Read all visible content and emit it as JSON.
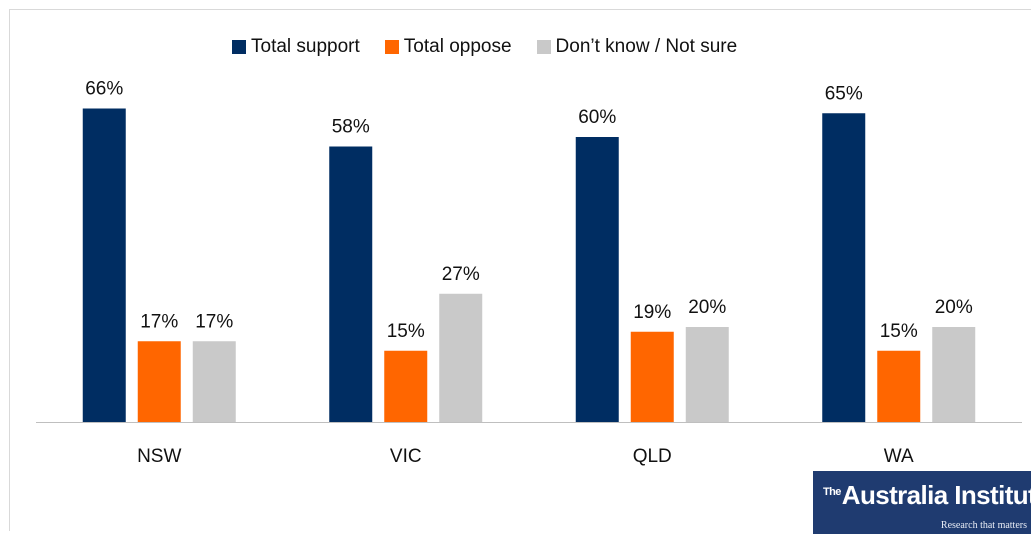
{
  "chart_data": {
    "type": "bar",
    "title": "",
    "xlabel": "",
    "ylabel": "",
    "ylim": [
      0,
      70
    ],
    "grid": false,
    "legend_position": "top",
    "categories": [
      "NSW",
      "VIC",
      "QLD",
      "WA"
    ],
    "series": [
      {
        "name": "Total support",
        "color": "#002D62",
        "values": [
          66,
          58,
          60,
          65
        ],
        "labels": [
          "66%",
          "58%",
          "60%",
          "65%"
        ]
      },
      {
        "name": "Total oppose",
        "color": "#FF6600",
        "values": [
          17,
          15,
          19,
          15
        ],
        "labels": [
          "17%",
          "15%",
          "19%",
          "15%"
        ]
      },
      {
        "name": "Don’t know / Not sure",
        "color": "#C9C9C9",
        "values": [
          17,
          27,
          20,
          20
        ],
        "labels": [
          "17%",
          "27%",
          "20%",
          "20%"
        ]
      }
    ]
  },
  "logo": {
    "prefix": "The",
    "name": "Australia Institute",
    "tagline": "Research that matters"
  }
}
